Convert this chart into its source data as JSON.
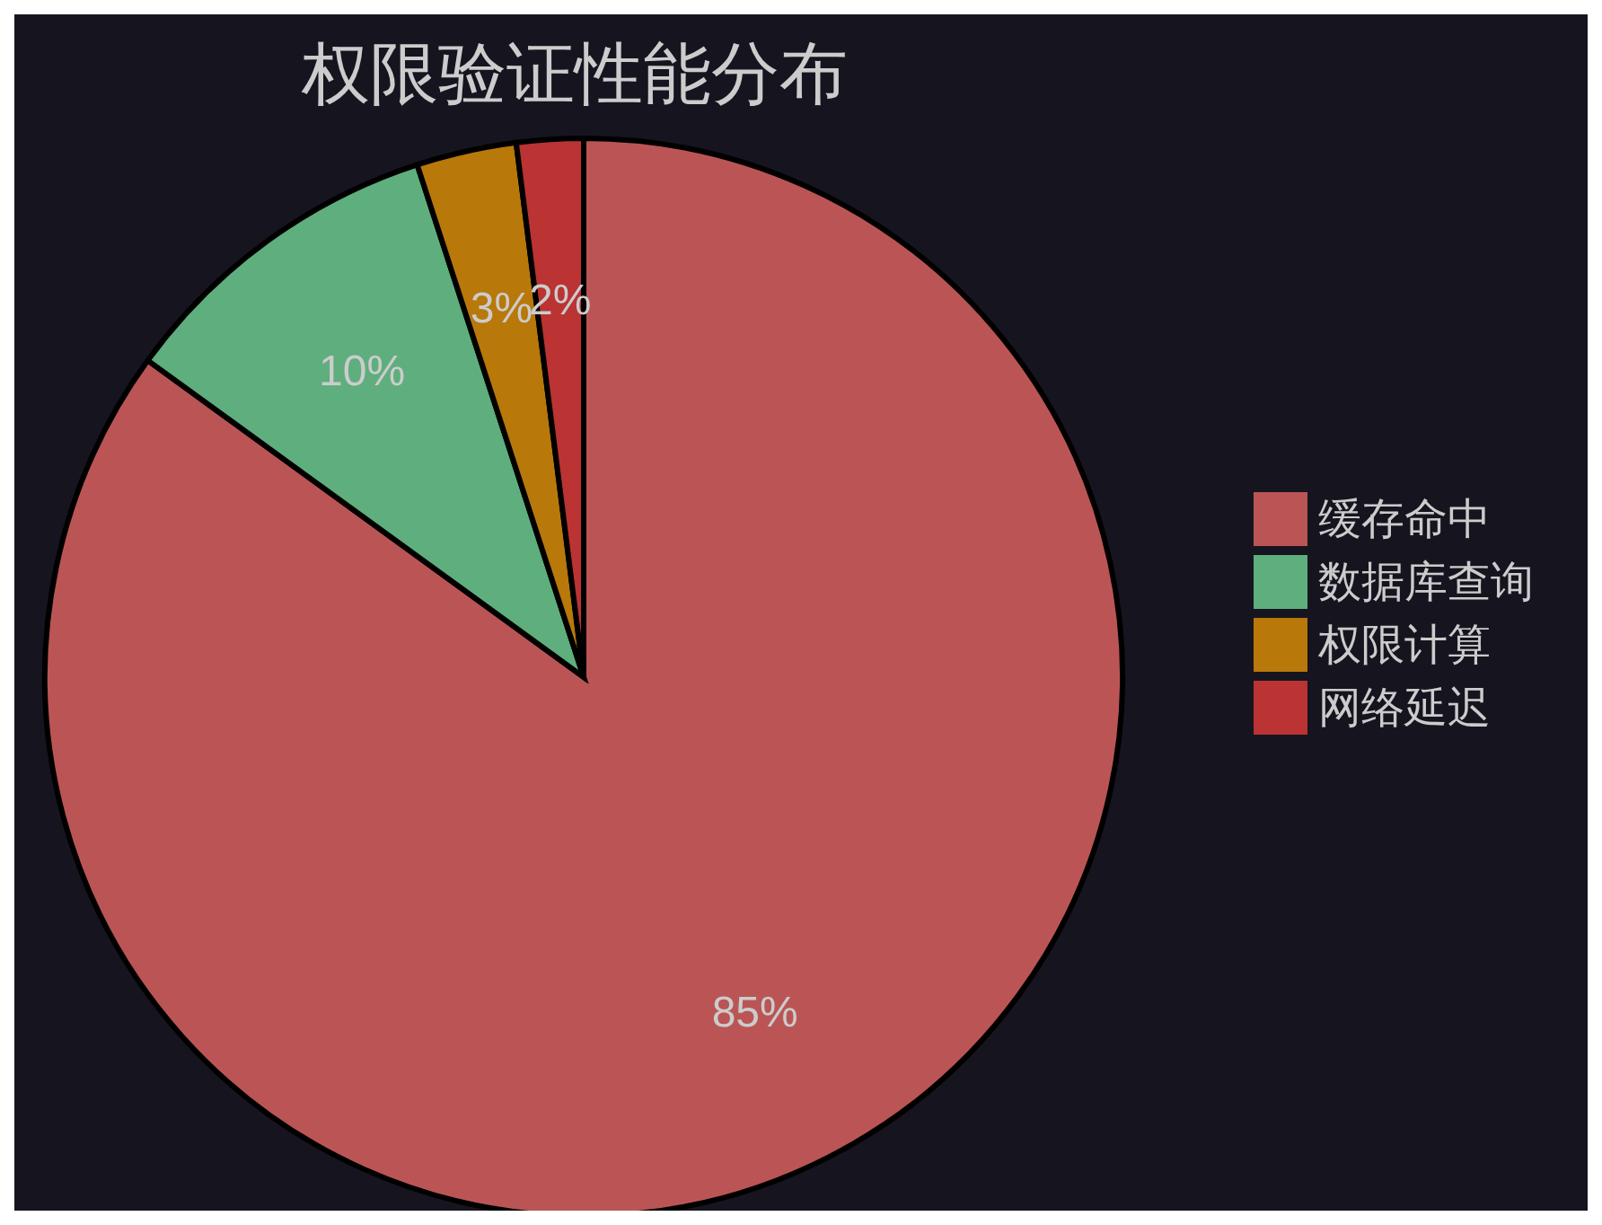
{
  "chart_data": {
    "type": "pie",
    "title": "权限验证性能分布",
    "categories": [
      "缓存命中",
      "数据库查询",
      "权限计算",
      "网络延迟"
    ],
    "values": [
      85,
      10,
      3,
      2
    ],
    "value_labels": [
      "85%",
      "10%",
      "3%",
      "2%"
    ],
    "colors": [
      "#bb5555",
      "#5fae7e",
      "#b8780a",
      "#bb3333"
    ],
    "legend": "right"
  }
}
